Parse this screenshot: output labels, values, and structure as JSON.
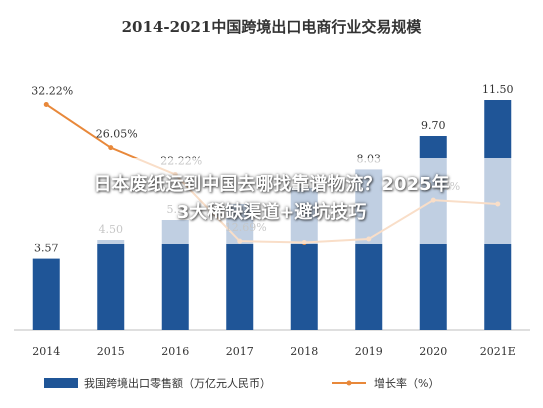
{
  "chart_data": {
    "type": "bar",
    "title": "2014-2021中国跨境出口电商行业交易规模",
    "categories": [
      "2014",
      "2015",
      "2016",
      "2017",
      "2018",
      "2019",
      "2020",
      "2021E"
    ],
    "series": [
      {
        "name": "我国跨境出口零售额（万亿元人民币）",
        "type": "bar",
        "values": [
          3.57,
          4.5,
          5.5,
          6.3,
          7.1,
          8.03,
          9.7,
          11.5
        ],
        "labels": [
          "3.57",
          "4.50",
          "5.5",
          "",
          "",
          "8.03",
          "9.70",
          "11.50"
        ],
        "color": "#1f5597"
      },
      {
        "name": "增长率（%）",
        "type": "line",
        "values": [
          32.22,
          26.05,
          22.22,
          12.69,
          12.5,
          13.0,
          18.55,
          18.0
        ],
        "labels": [
          "32.22%",
          "26.05%",
          "22.22%",
          "12.69%",
          "",
          "",
          "18.55%",
          ""
        ],
        "color": "#e8883a"
      }
    ],
    "ylim": [
      0,
      14
    ],
    "y2lim": [
      0,
      40
    ],
    "grid": false,
    "legend_position": "bottom"
  },
  "overlay": {
    "line1": "日本废纸运到中国去哪找靠谱物流？2025年",
    "line2": "3大稀缺渠道+避坑技巧"
  }
}
